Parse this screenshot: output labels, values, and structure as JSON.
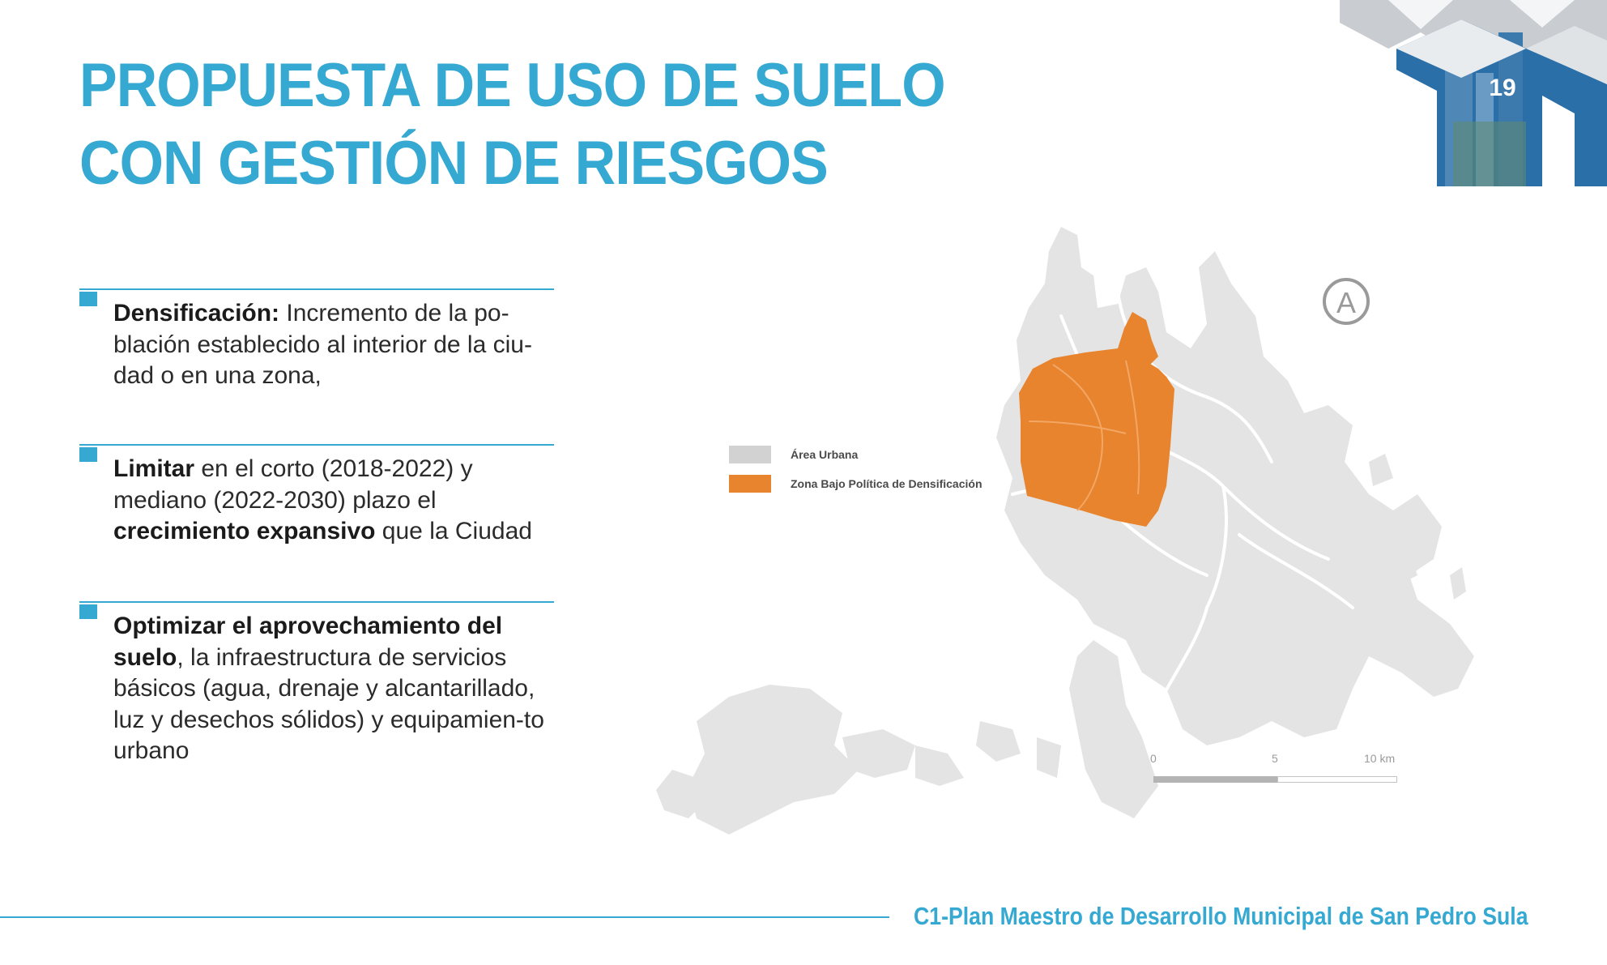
{
  "header": {
    "title_lines": [
      "PROPUESTA DE USO DE SUELO",
      "CON GESTIÓN DE RIESGOS"
    ],
    "page_number": "19"
  },
  "bullets": [
    {
      "bold": "Densificación:",
      "text": " Incremento de la po-blación establecido al interior de la ciu-dad o en una zona,"
    },
    {
      "bold": "Limitar",
      "text_1": " en el corto (2018-2022) y mediano (2022-2030) plazo el ",
      "bold_2": "crecimiento expansivo",
      "text_2": " que la Ciudad"
    },
    {
      "bold": "Optimizar el aprovechamiento del suelo",
      "text": ", la infraestructura de servicios básicos (agua, drenaje y alcantarillado, luz y desechos sólidos) y equipamien-to urbano"
    }
  ],
  "map": {
    "north_label": "A",
    "legend": [
      {
        "label": "Área Urbana",
        "color": "#d2d2d2"
      },
      {
        "label": "Zona Bajo Política de Densificación",
        "color": "#e8832e"
      }
    ],
    "scale_ticks": [
      "0",
      "5",
      "10 km"
    ]
  },
  "footer": {
    "text": "C1-Plan Maestro de Desarrollo Municipal de San Pedro Sula"
  },
  "colors": {
    "accent": "#35a9d2",
    "urban_area": "#e4e4e4",
    "densification_zone": "#e8832e",
    "corner_blue": "#2b6fa8"
  }
}
